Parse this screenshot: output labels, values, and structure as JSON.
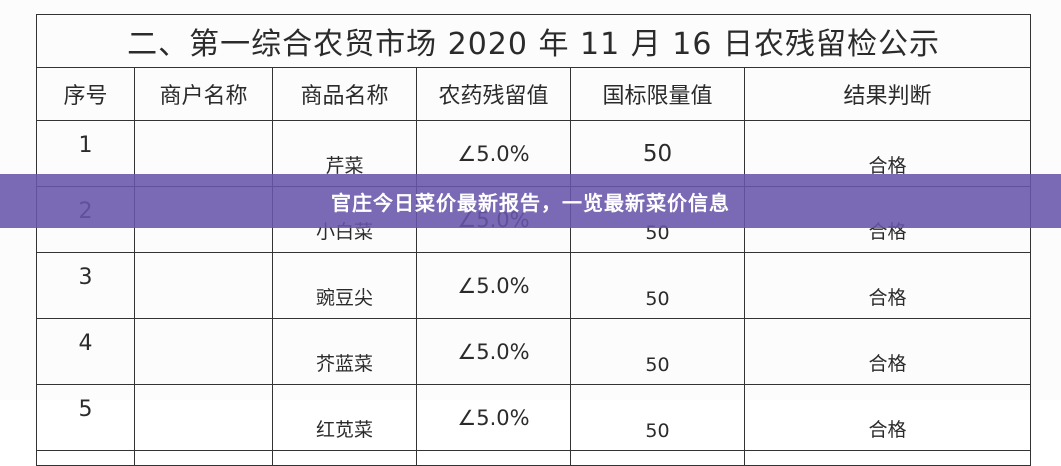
{
  "document": {
    "title": "二、第一综合农贸市场 2020 年 11 月 16 日农残留检公示",
    "columns": [
      "序号",
      "商户名称",
      "商品名称",
      "农药残留值",
      "国标限量值",
      "结果判断"
    ],
    "rows": [
      {
        "no": "1",
        "merchant": "",
        "product": "芹菜",
        "residue": "∠5.0%",
        "limit": "50",
        "result": "合格"
      },
      {
        "no": "2",
        "merchant": "",
        "product": "小白菜",
        "residue": "∠5.0%",
        "limit": "50",
        "result": "合格"
      },
      {
        "no": "3",
        "merchant": "",
        "product": "豌豆尖",
        "residue": "∠5.0%",
        "limit": "50",
        "result": "合格"
      },
      {
        "no": "4",
        "merchant": "",
        "product": "芥蓝菜",
        "residue": "∠5.0%",
        "limit": "50",
        "result": "合格"
      },
      {
        "no": "5",
        "merchant": "",
        "product": "红苋菜",
        "residue": "∠5.0%",
        "limit": "50",
        "result": "合格"
      }
    ]
  },
  "banner": {
    "text": "官庄今日菜价最新报告，一览最新菜价信息",
    "color": "#6854aa"
  }
}
